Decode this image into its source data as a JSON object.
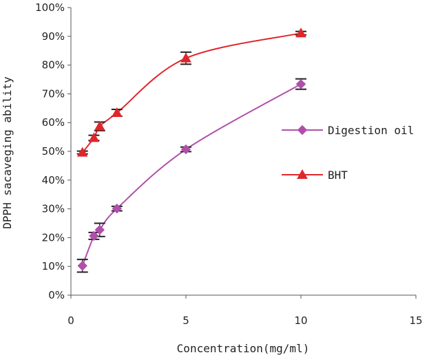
{
  "chart_data": {
    "type": "line",
    "title": "",
    "xlabel": "Concentration(mg/ml)",
    "ylabel": "DPPH sacaveging ability",
    "xlim": [
      0,
      15
    ],
    "ylim": [
      0,
      100
    ],
    "x_ticks": [
      0,
      5,
      10,
      15
    ],
    "y_ticks": [
      0,
      10,
      20,
      30,
      40,
      50,
      60,
      70,
      80,
      90,
      100
    ],
    "y_tick_suffix": "%",
    "grid": false,
    "legend_position": "right",
    "series": [
      {
        "name": "Digestion oil",
        "color": "#b04faa",
        "marker": "diamond",
        "x": [
          0.5,
          1,
          1.25,
          2,
          5,
          10
        ],
        "y": [
          10.2,
          20.6,
          22.7,
          30.1,
          50.7,
          73.4
        ],
        "error": [
          2.2,
          1.2,
          2.3,
          0.8,
          0.8,
          1.8
        ]
      },
      {
        "name": "BHT",
        "color": "#e0262b",
        "marker": "triangle",
        "x": [
          0.5,
          1,
          1.25,
          2,
          5,
          10
        ],
        "y": [
          49.6,
          54.7,
          58.7,
          63.4,
          82.4,
          91.1
        ],
        "error": [
          0.5,
          0.9,
          1.5,
          1.2,
          2.1,
          0.6
        ]
      }
    ]
  }
}
